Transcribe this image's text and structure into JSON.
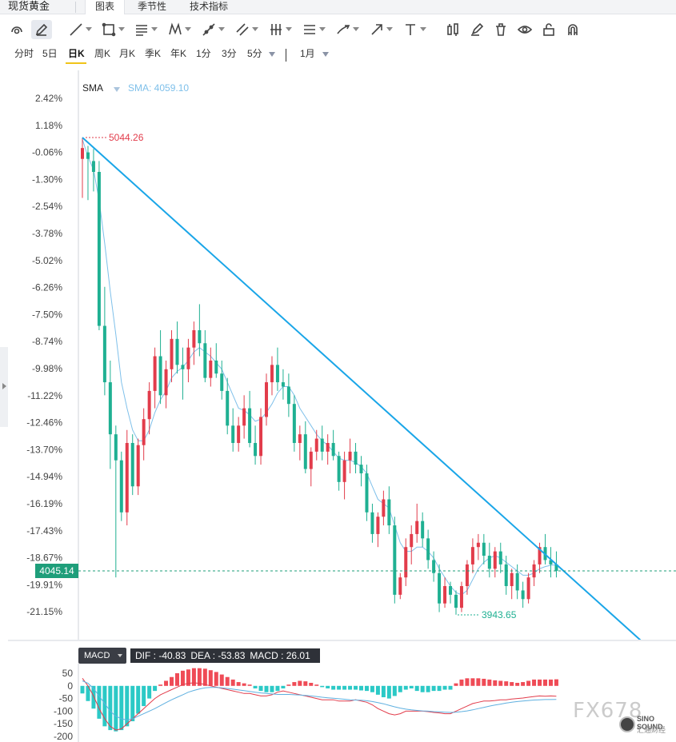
{
  "tabs": {
    "instrument": "现货黄金",
    "items": [
      "图表",
      "季节性",
      "技术指标"
    ],
    "active_index": 0
  },
  "toolbar": {
    "tools": [
      "cursor-icon",
      "pencil-icon",
      "trend-line-icon",
      "rectangle-icon",
      "fib-icon",
      "pattern-icon",
      "ray-icon",
      "parallel-icon",
      "bars-icon",
      "channel-icon",
      "brush-icon",
      "arrow-icon",
      "text-icon",
      "candle-icon",
      "marker-icon",
      "trash-icon",
      "eye-icon",
      "lock-icon",
      "magnet-icon"
    ]
  },
  "periods": {
    "items": [
      "分时",
      "5日",
      "日K",
      "周K",
      "月K",
      "季K",
      "年K",
      "1分",
      "3分",
      "5分"
    ],
    "active": "日K",
    "range": "1月"
  },
  "indicator": {
    "sma_label": "SMA",
    "sma_value": "SMA: 4059.10"
  },
  "price_tag": "4045.14",
  "macd": {
    "button": "MACD",
    "dif": "DIF : -40.83",
    "dea": "DEA : -53.83",
    "macd": "MACD : 26.01"
  },
  "watermark": {
    "text": "FX678",
    "badge_line1": "SINO SOUND",
    "badge_line2": "汇通财经"
  },
  "colors": {
    "up": "#e23c4b",
    "down": "#1fb092",
    "sma": "#7fc0ea",
    "trendline": "#1aa6e8",
    "macd_pos": "#ef4b56",
    "macd_neg": "#2bc9c6",
    "dif": "#e23c4b",
    "dea": "#5fb0e0"
  },
  "chart_data": {
    "type": "candlestick",
    "title": "",
    "y_axis_ticks": [
      "2.42%",
      "1.18%",
      "-0.06%",
      "-1.30%",
      "-2.54%",
      "-3.78%",
      "-5.02%",
      "-6.26%",
      "-7.50%",
      "-8.74%",
      "-9.98%",
      "-11.22%",
      "-12.46%",
      "-13.70%",
      "-14.94%",
      "-16.19%",
      "-17.43%",
      "-18.67%",
      "-19.91%",
      "-21.15%"
    ],
    "ylim": [
      3943.65,
      5044.26
    ],
    "annotations": {
      "high_label": "5044.26",
      "low_label": "3943.65",
      "last_price": "4045.14"
    },
    "candles": [
      {
        "o": 4995,
        "h": 5044,
        "l": 4905,
        "c": 5020
      },
      {
        "o": 5010,
        "h": 5025,
        "l": 4900,
        "c": 4995
      },
      {
        "o": 4990,
        "h": 5018,
        "l": 4920,
        "c": 4965
      },
      {
        "o": 4965,
        "h": 4990,
        "l": 4600,
        "c": 4610
      },
      {
        "o": 4610,
        "h": 4700,
        "l": 4450,
        "c": 4480
      },
      {
        "o": 4480,
        "h": 4530,
        "l": 4280,
        "c": 4360
      },
      {
        "o": 4360,
        "h": 4380,
        "l": 4030,
        "c": 4300
      },
      {
        "o": 4300,
        "h": 4320,
        "l": 4160,
        "c": 4180
      },
      {
        "o": 4180,
        "h": 4370,
        "l": 4150,
        "c": 4340
      },
      {
        "o": 4340,
        "h": 4360,
        "l": 4220,
        "c": 4240
      },
      {
        "o": 4240,
        "h": 4350,
        "l": 4220,
        "c": 4335
      },
      {
        "o": 4335,
        "h": 4420,
        "l": 4300,
        "c": 4395
      },
      {
        "o": 4395,
        "h": 4480,
        "l": 4360,
        "c": 4460
      },
      {
        "o": 4460,
        "h": 4560,
        "l": 4420,
        "c": 4540
      },
      {
        "o": 4540,
        "h": 4600,
        "l": 4430,
        "c": 4450
      },
      {
        "o": 4450,
        "h": 4530,
        "l": 4420,
        "c": 4510
      },
      {
        "o": 4510,
        "h": 4600,
        "l": 4480,
        "c": 4580
      },
      {
        "o": 4580,
        "h": 4620,
        "l": 4500,
        "c": 4520
      },
      {
        "o": 4520,
        "h": 4560,
        "l": 4440,
        "c": 4510
      },
      {
        "o": 4510,
        "h": 4580,
        "l": 4480,
        "c": 4560
      },
      {
        "o": 4560,
        "h": 4620,
        "l": 4520,
        "c": 4600
      },
      {
        "o": 4600,
        "h": 4660,
        "l": 4540,
        "c": 4570
      },
      {
        "o": 4570,
        "h": 4600,
        "l": 4480,
        "c": 4490
      },
      {
        "o": 4490,
        "h": 4560,
        "l": 4470,
        "c": 4530
      },
      {
        "o": 4530,
        "h": 4570,
        "l": 4490,
        "c": 4500
      },
      {
        "o": 4500,
        "h": 4530,
        "l": 4440,
        "c": 4460
      },
      {
        "o": 4460,
        "h": 4490,
        "l": 4360,
        "c": 4380
      },
      {
        "o": 4380,
        "h": 4420,
        "l": 4320,
        "c": 4340
      },
      {
        "o": 4340,
        "h": 4400,
        "l": 4320,
        "c": 4380
      },
      {
        "o": 4380,
        "h": 4450,
        "l": 4350,
        "c": 4420
      },
      {
        "o": 4420,
        "h": 4460,
        "l": 4330,
        "c": 4340
      },
      {
        "o": 4340,
        "h": 4380,
        "l": 4290,
        "c": 4310
      },
      {
        "o": 4310,
        "h": 4420,
        "l": 4290,
        "c": 4400
      },
      {
        "o": 4400,
        "h": 4500,
        "l": 4380,
        "c": 4480
      },
      {
        "o": 4480,
        "h": 4540,
        "l": 4450,
        "c": 4520
      },
      {
        "o": 4520,
        "h": 4560,
        "l": 4460,
        "c": 4480
      },
      {
        "o": 4480,
        "h": 4510,
        "l": 4440,
        "c": 4470
      },
      {
        "o": 4470,
        "h": 4500,
        "l": 4400,
        "c": 4430
      },
      {
        "o": 4430,
        "h": 4450,
        "l": 4320,
        "c": 4340
      },
      {
        "o": 4340,
        "h": 4380,
        "l": 4300,
        "c": 4360
      },
      {
        "o": 4360,
        "h": 4390,
        "l": 4270,
        "c": 4280
      },
      {
        "o": 4280,
        "h": 4330,
        "l": 4240,
        "c": 4320
      },
      {
        "o": 4320,
        "h": 4370,
        "l": 4300,
        "c": 4350
      },
      {
        "o": 4350,
        "h": 4380,
        "l": 4300,
        "c": 4320
      },
      {
        "o": 4320,
        "h": 4360,
        "l": 4290,
        "c": 4340
      },
      {
        "o": 4340,
        "h": 4370,
        "l": 4300,
        "c": 4310
      },
      {
        "o": 4310,
        "h": 4320,
        "l": 4230,
        "c": 4250
      },
      {
        "o": 4250,
        "h": 4320,
        "l": 4210,
        "c": 4300
      },
      {
        "o": 4300,
        "h": 4350,
        "l": 4270,
        "c": 4320
      },
      {
        "o": 4320,
        "h": 4340,
        "l": 4270,
        "c": 4290
      },
      {
        "o": 4290,
        "h": 4310,
        "l": 4240,
        "c": 4270
      },
      {
        "o": 4270,
        "h": 4290,
        "l": 4160,
        "c": 4180
      },
      {
        "o": 4180,
        "h": 4200,
        "l": 4110,
        "c": 4130
      },
      {
        "o": 4130,
        "h": 4180,
        "l": 4100,
        "c": 4170
      },
      {
        "o": 4170,
        "h": 4230,
        "l": 4150,
        "c": 4210
      },
      {
        "o": 4210,
        "h": 4240,
        "l": 4130,
        "c": 4150
      },
      {
        "o": 4150,
        "h": 4170,
        "l": 3970,
        "c": 3990
      },
      {
        "o": 3990,
        "h": 4040,
        "l": 3980,
        "c": 4030
      },
      {
        "o": 4030,
        "h": 4120,
        "l": 4010,
        "c": 4100
      },
      {
        "o": 4100,
        "h": 4150,
        "l": 4060,
        "c": 4130
      },
      {
        "o": 4130,
        "h": 4200,
        "l": 4110,
        "c": 4160
      },
      {
        "o": 4160,
        "h": 4180,
        "l": 4100,
        "c": 4120
      },
      {
        "o": 4120,
        "h": 4140,
        "l": 4050,
        "c": 4070
      },
      {
        "o": 4070,
        "h": 4090,
        "l": 4020,
        "c": 4040
      },
      {
        "o": 4040,
        "h": 4060,
        "l": 3950,
        "c": 3970
      },
      {
        "o": 3970,
        "h": 4030,
        "l": 3960,
        "c": 4010
      },
      {
        "o": 4010,
        "h": 4020,
        "l": 3970,
        "c": 3990
      },
      {
        "o": 3990,
        "h": 4000,
        "l": 3944,
        "c": 3960
      },
      {
        "o": 3960,
        "h": 4020,
        "l": 3950,
        "c": 4010
      },
      {
        "o": 4010,
        "h": 4070,
        "l": 3990,
        "c": 4060
      },
      {
        "o": 4060,
        "h": 4120,
        "l": 4040,
        "c": 4100
      },
      {
        "o": 4100,
        "h": 4130,
        "l": 4070,
        "c": 4110
      },
      {
        "o": 4110,
        "h": 4130,
        "l": 4060,
        "c": 4080
      },
      {
        "o": 4080,
        "h": 4110,
        "l": 4030,
        "c": 4050
      },
      {
        "o": 4050,
        "h": 4100,
        "l": 4030,
        "c": 4090
      },
      {
        "o": 4090,
        "h": 4110,
        "l": 4040,
        "c": 4060
      },
      {
        "o": 4060,
        "h": 4080,
        "l": 3990,
        "c": 4010
      },
      {
        "o": 4010,
        "h": 4050,
        "l": 3980,
        "c": 4040
      },
      {
        "o": 4040,
        "h": 4060,
        "l": 3980,
        "c": 4000
      },
      {
        "o": 4000,
        "h": 4020,
        "l": 3960,
        "c": 3980
      },
      {
        "o": 3980,
        "h": 4040,
        "l": 3970,
        "c": 4030
      },
      {
        "o": 4030,
        "h": 4070,
        "l": 4010,
        "c": 4060
      },
      {
        "o": 4060,
        "h": 4110,
        "l": 4040,
        "c": 4100
      },
      {
        "o": 4100,
        "h": 4130,
        "l": 4060,
        "c": 4070
      },
      {
        "o": 4070,
        "h": 4100,
        "l": 4030,
        "c": 4060
      },
      {
        "o": 4060,
        "h": 4090,
        "l": 4030,
        "c": 4045
      }
    ],
    "sma": [
      5040,
      5000,
      4970,
      4900,
      4800,
      4690,
      4590,
      4480,
      4420,
      4370,
      4345,
      4345,
      4370,
      4410,
      4440,
      4460,
      4490,
      4505,
      4515,
      4530,
      4550,
      4560,
      4550,
      4540,
      4525,
      4510,
      4480,
      4450,
      4420,
      4415,
      4405,
      4390,
      4395,
      4410,
      4430,
      4455,
      4470,
      4470,
      4450,
      4420,
      4400,
      4380,
      4360,
      4345,
      4335,
      4320,
      4305,
      4300,
      4300,
      4295,
      4285,
      4270,
      4240,
      4210,
      4200,
      4190,
      4150,
      4110,
      4090,
      4090,
      4100,
      4100,
      4090,
      4075,
      4050,
      4030,
      4010,
      3995,
      3990,
      4000,
      4025,
      4050,
      4065,
      4075,
      4080,
      4075,
      4065,
      4055,
      4045,
      4035,
      4035,
      4040,
      4050,
      4055,
      4058,
      4059
    ],
    "trendline": [
      {
        "index": 0,
        "price": 5044.26
      },
      {
        "index": 85,
        "price": 4060
      }
    ],
    "macd": {
      "yticks": [
        50,
        0,
        -50,
        -100,
        -150,
        -200
      ],
      "ylim": [
        -200,
        50
      ],
      "hist": [
        -30,
        -60,
        -90,
        -130,
        -160,
        -175,
        -180,
        -175,
        -160,
        -140,
        -110,
        -80,
        -50,
        -20,
        5,
        20,
        35,
        50,
        60,
        65,
        70,
        70,
        68,
        62,
        55,
        45,
        35,
        25,
        15,
        10,
        5,
        -10,
        -20,
        -25,
        -25,
        -20,
        -10,
        5,
        15,
        20,
        18,
        12,
        5,
        -5,
        -10,
        -15,
        -15,
        -15,
        -15,
        -15,
        -18,
        -20,
        -25,
        -35,
        -45,
        -50,
        -40,
        -25,
        -15,
        -10,
        -20,
        -25,
        -25,
        -20,
        -20,
        -15,
        -15,
        10,
        25,
        30,
        30,
        30,
        28,
        25,
        22,
        20,
        18,
        15,
        12,
        15,
        20,
        25,
        25,
        25,
        25,
        26
      ],
      "dif": [
        30,
        0,
        -40,
        -90,
        -130,
        -160,
        -175,
        -170,
        -150,
        -130,
        -110,
        -90,
        -70,
        -50,
        -35,
        -25,
        -15,
        -5,
        5,
        10,
        12,
        10,
        5,
        0,
        -5,
        -10,
        -15,
        -20,
        -25,
        -30,
        -30,
        -35,
        -40,
        -40,
        -35,
        -25,
        -20,
        -25,
        -30,
        -35,
        -40,
        -45,
        -50,
        -55,
        -55,
        -55,
        -60,
        -60,
        -60,
        -55,
        -60,
        -65,
        -75,
        -90,
        -100,
        -110,
        -115,
        -110,
        -100,
        -100,
        -100,
        -100,
        -102,
        -105,
        -107,
        -110,
        -110,
        -100,
        -90,
        -80,
        -70,
        -65,
        -60,
        -60,
        -58,
        -55,
        -55,
        -52,
        -50,
        -48,
        -45,
        -42,
        -40,
        -41,
        -40,
        -40.83
      ],
      "dea": [
        20,
        10,
        -10,
        -40,
        -70,
        -100,
        -120,
        -130,
        -135,
        -130,
        -120,
        -110,
        -100,
        -90,
        -78,
        -66,
        -55,
        -45,
        -35,
        -25,
        -18,
        -12,
        -8,
        -6,
        -6,
        -8,
        -10,
        -13,
        -16,
        -19,
        -22,
        -25,
        -28,
        -30,
        -32,
        -34,
        -34,
        -34,
        -35,
        -36,
        -38,
        -40,
        -42,
        -45,
        -47,
        -49,
        -51,
        -53,
        -55,
        -56,
        -57,
        -59,
        -62,
        -66,
        -71,
        -77,
        -83,
        -88,
        -92,
        -95,
        -97,
        -99,
        -100,
        -102,
        -103,
        -104,
        -105,
        -104,
        -102,
        -99,
        -95,
        -90,
        -85,
        -80,
        -76,
        -72,
        -68,
        -65,
        -62,
        -60,
        -58,
        -56,
        -55,
        -54,
        -54,
        -53.83
      ]
    }
  }
}
